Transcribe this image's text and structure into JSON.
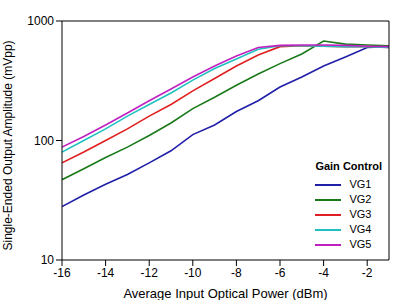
{
  "chart_data": {
    "type": "line",
    "x_label": "Average Input Optical Power (dBm)",
    "y_label": "Single-Ended Output Amplitude (mVpp)",
    "legend_title": "Gain Control",
    "x": [
      -16,
      -15,
      -14,
      -13,
      -12,
      -11,
      -10,
      -9,
      -8,
      -7,
      -6,
      -5,
      -4,
      -3,
      -2,
      -1
    ],
    "series": [
      {
        "name": "VG1",
        "color": "#1f1fa8",
        "values": [
          28,
          35,
          43,
          52,
          65,
          82,
          112,
          135,
          175,
          215,
          280,
          340,
          420,
          500,
          600,
          610
        ]
      },
      {
        "name": "VG2",
        "color": "#1a7a1a",
        "values": [
          47,
          58,
          72,
          88,
          110,
          140,
          185,
          230,
          290,
          360,
          440,
          530,
          680,
          640,
          630,
          620
        ]
      },
      {
        "name": "VG3",
        "color": "#e02020",
        "values": [
          65,
          80,
          100,
          125,
          160,
          200,
          260,
          330,
          420,
          520,
          610,
          620,
          615,
          610,
          610,
          600
        ]
      },
      {
        "name": "VG4",
        "color": "#20c0c0",
        "values": [
          80,
          100,
          125,
          160,
          200,
          250,
          320,
          400,
          480,
          580,
          620,
          620,
          615,
          610,
          610,
          600
        ]
      },
      {
        "name": "VG5",
        "color": "#c020c0",
        "values": [
          88,
          108,
          135,
          170,
          215,
          270,
          340,
          420,
          510,
          600,
          625,
          630,
          630,
          625,
          615,
          610
        ]
      }
    ],
    "xlim": [
      -16,
      -1
    ],
    "xticks": [
      -16,
      -14,
      -12,
      -10,
      -8,
      -6,
      -4,
      -2
    ],
    "ylim": [
      10,
      1000
    ],
    "yticks": [
      10,
      100,
      1000
    ],
    "log": "y",
    "grid": false,
    "legend": "lower right"
  }
}
